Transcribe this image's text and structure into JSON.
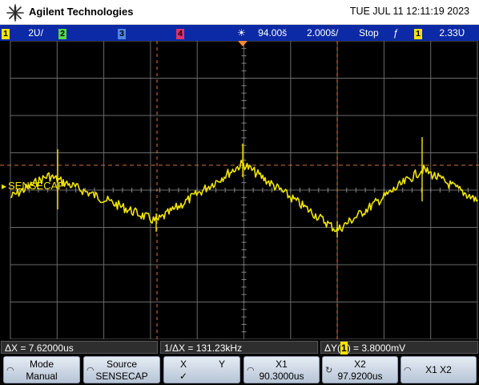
{
  "header": {
    "brand": "Agilent Technologies",
    "datetime": "TUE JUL 11 12:11:19 2023"
  },
  "status": {
    "ch1_num": "1",
    "ch1_scale": "2Ʋ/",
    "ch2_num": "2",
    "ch3_num": "3",
    "ch4_num": "4",
    "trigger_pos_icon": "☀",
    "trigger_pos": "94.00š",
    "timebase": "2.000š/",
    "run_state": "Stop",
    "edge_icon": "ƒ",
    "trig_channel": "1",
    "trig_level": "2.33Ʋ"
  },
  "waveform": {
    "label": "SENSECAP",
    "color": "#f2e600",
    "cursor_color": "#e07838"
  },
  "measurements": {
    "dx": "ΔX = 7.62000us",
    "inv_dx": "1/ΔX = 131.23kHz",
    "dy_prefix": "ΔY(",
    "dy_channel": "1",
    "dy_suffix": ") = 3.8000mV"
  },
  "softkeys": {
    "mode_title": "Mode",
    "mode_value": "Manual",
    "source_title": "Source",
    "source_value": "SENSECAP",
    "x_label": "X",
    "y_label": "Y",
    "x_check": "✓",
    "x1_title": "X1",
    "x1_value": "90.3000us",
    "x2_title": "X2",
    "x2_value": "97.9200us",
    "x1x2_label": "X1 X2"
  }
}
